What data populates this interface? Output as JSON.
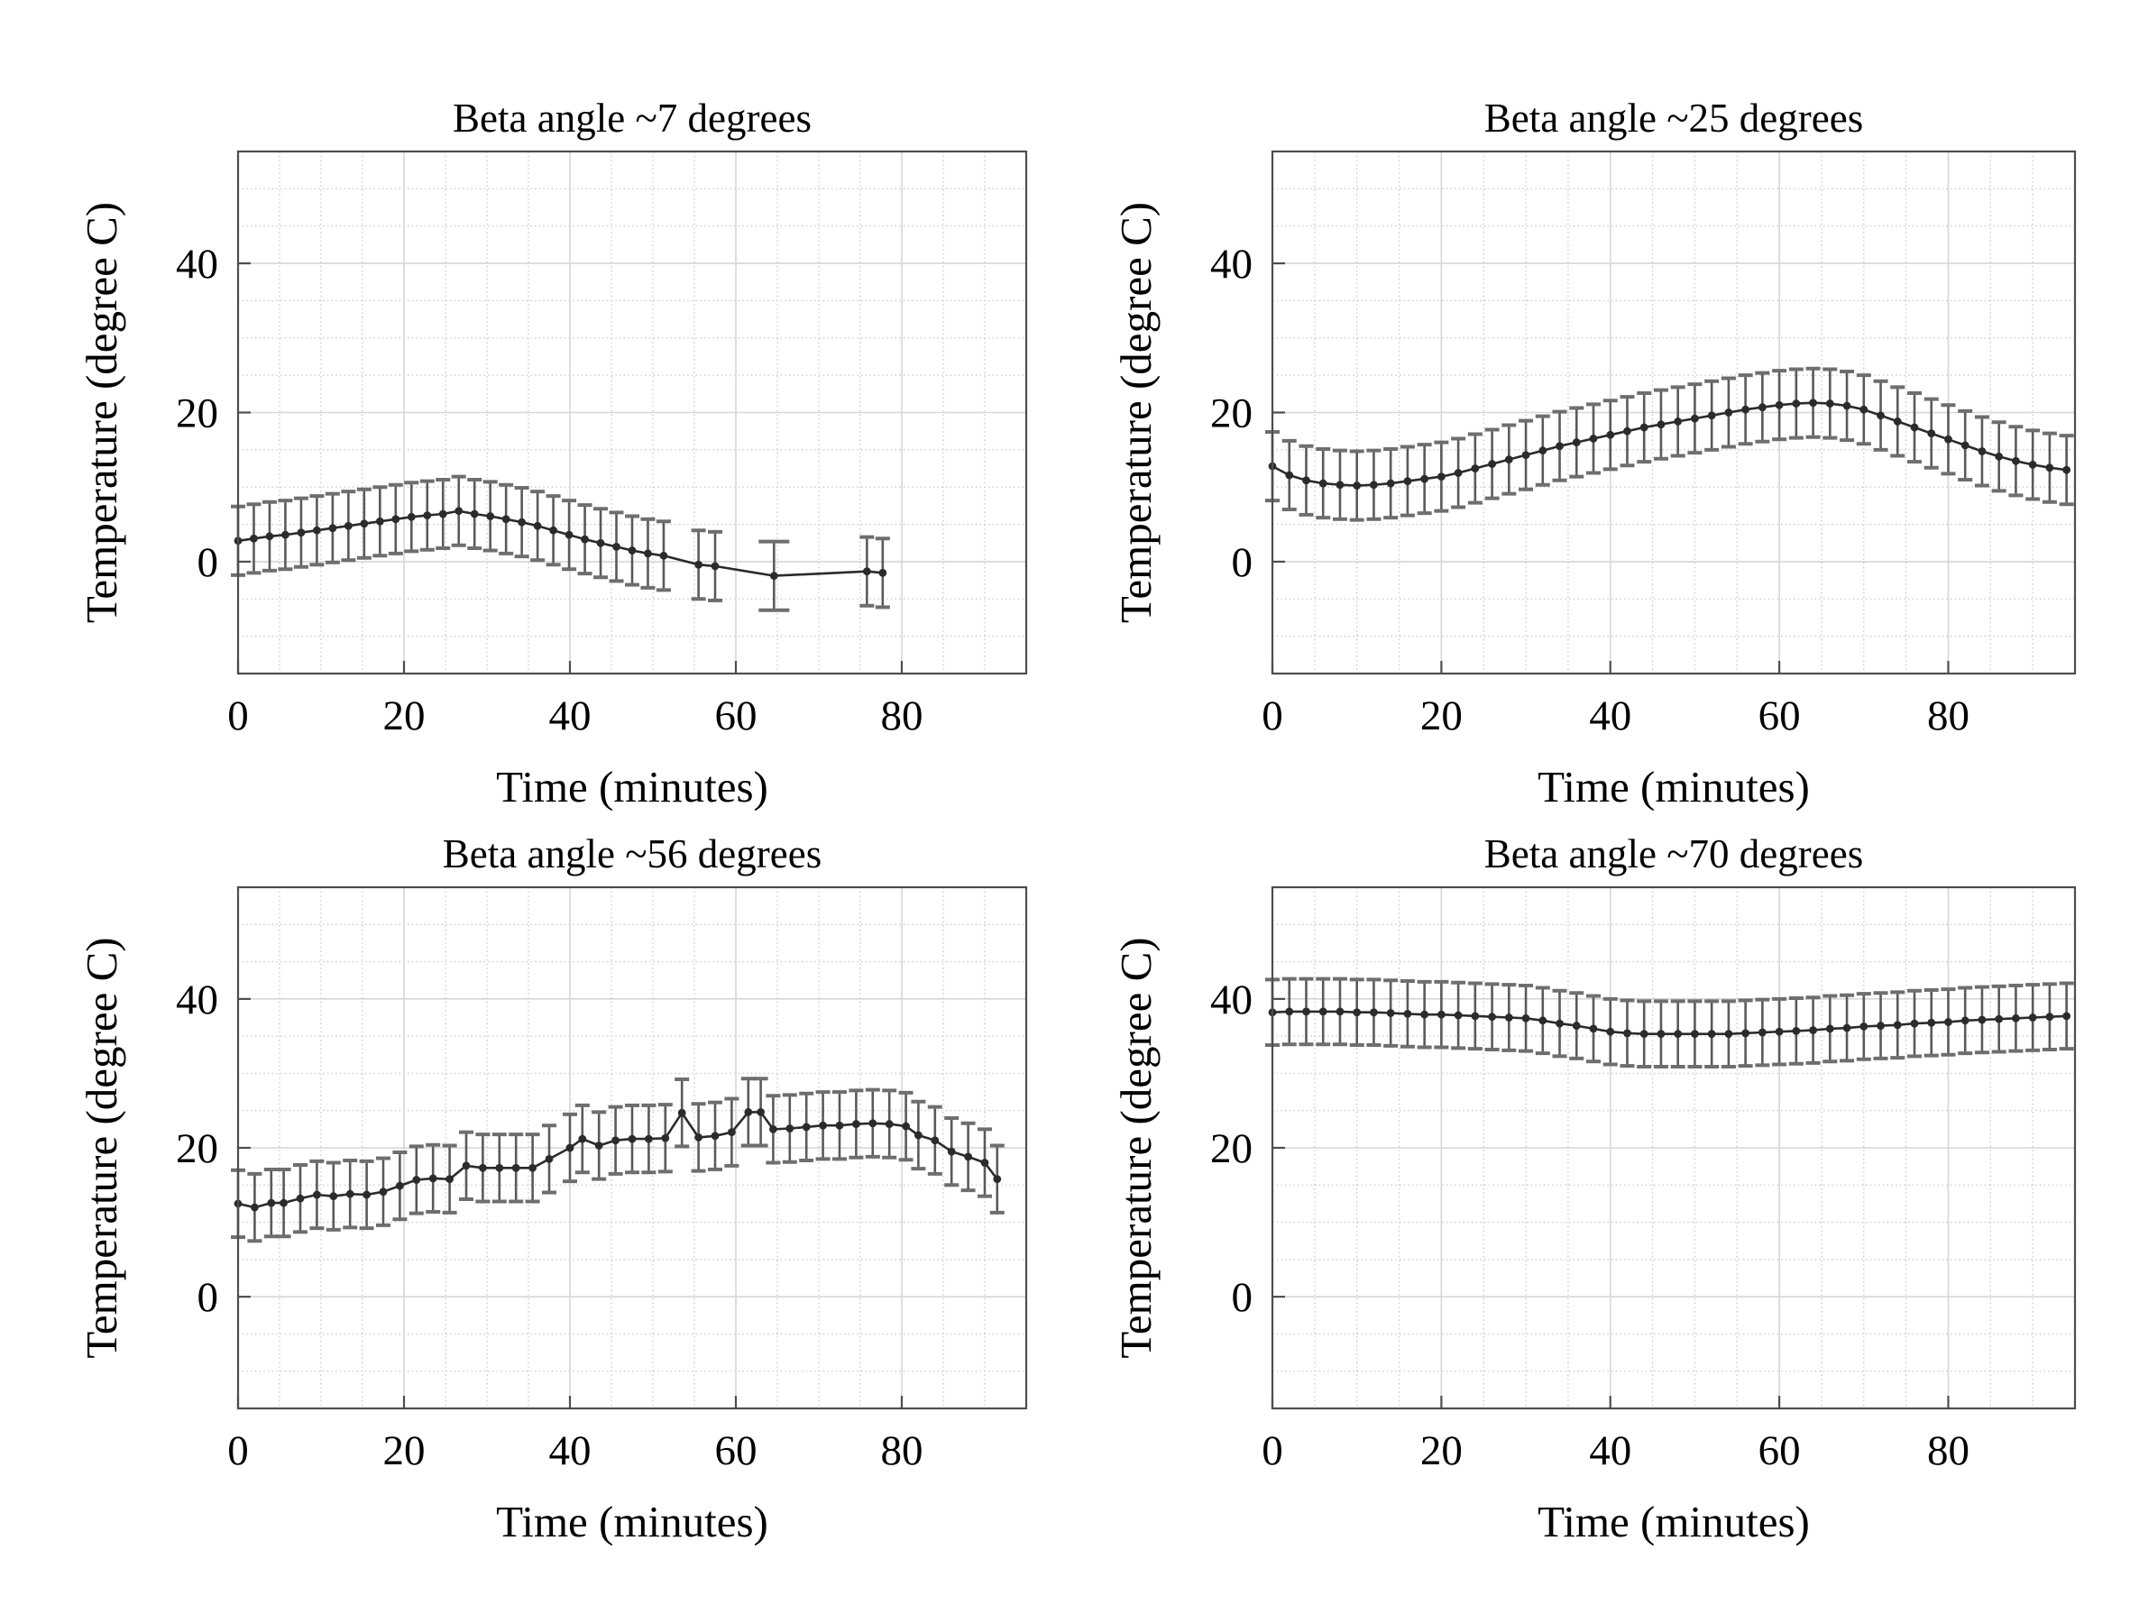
{
  "figure": {
    "background_color": "#ffffff",
    "text_color": "#000000",
    "axis_color": "#4d4d4d",
    "line_color": "#2b2b2b",
    "errorbar_color": "#5a5a5a",
    "errorbar_cap_color": "#6e6e6e",
    "major_grid_color": "#d6d6d6",
    "minor_grid_color": "#cccccc"
  },
  "chart_data": [
    {
      "type": "line",
      "panel": "top-left",
      "title": "Beta angle ~7 degrees",
      "xlabel": "Time (minutes)",
      "ylabel": "Temperature (degree C)",
      "xlim": [
        0,
        95
      ],
      "ylim": [
        -15,
        55
      ],
      "xticks": [
        0,
        20,
        40,
        60,
        80
      ],
      "yticks": [
        0,
        20,
        40
      ],
      "grid": "major+minor",
      "legend": "none",
      "marker": "point",
      "yerr": 4.6,
      "x": [
        0,
        1.9,
        3.8,
        5.7,
        7.6,
        9.5,
        11.4,
        13.3,
        15.2,
        17.1,
        19,
        20.9,
        22.8,
        24.7,
        26.6,
        28.5,
        30.4,
        32.3,
        34.2,
        36.1,
        38,
        39.9,
        41.8,
        43.7,
        45.6,
        47.5,
        49.4,
        51.3,
        55.5,
        57.5,
        64.6,
        75.8,
        77.7
      ],
      "y": [
        2.8,
        3.1,
        3.4,
        3.6,
        3.9,
        4.2,
        4.5,
        4.8,
        5.1,
        5.4,
        5.7,
        6.0,
        6.2,
        6.4,
        6.8,
        6.4,
        6.1,
        5.7,
        5.3,
        4.8,
        4.2,
        3.6,
        3.0,
        2.5,
        2.0,
        1.5,
        1.1,
        0.8,
        -0.4,
        -0.6,
        -1.9,
        -1.3,
        -1.5
      ]
    },
    {
      "type": "line",
      "panel": "top-right",
      "title": "Beta angle ~25 degrees",
      "xlabel": "Time (minutes)",
      "ylabel": "Temperature (degree C)",
      "xlim": [
        0,
        95
      ],
      "ylim": [
        -15,
        55
      ],
      "xticks": [
        0,
        20,
        40,
        60,
        80
      ],
      "yticks": [
        0,
        20,
        40
      ],
      "grid": "major+minor",
      "legend": "none",
      "marker": "point",
      "yerr": 4.6,
      "x": [
        0,
        2,
        4,
        6,
        8,
        10,
        12,
        14,
        16,
        18,
        20,
        22,
        24,
        26,
        28,
        30,
        32,
        34,
        36,
        38,
        40,
        42,
        44,
        46,
        48,
        50,
        52,
        54,
        56,
        58,
        60,
        62,
        64,
        66,
        68,
        70,
        72,
        74,
        76,
        78,
        80,
        82,
        84,
        86,
        88,
        90,
        92,
        94
      ],
      "y": [
        12.8,
        11.6,
        10.9,
        10.5,
        10.3,
        10.2,
        10.3,
        10.5,
        10.8,
        11.1,
        11.4,
        11.9,
        12.5,
        13.1,
        13.7,
        14.3,
        14.9,
        15.5,
        16.0,
        16.5,
        17.0,
        17.5,
        18.0,
        18.4,
        18.8,
        19.2,
        19.6,
        20.0,
        20.4,
        20.7,
        21.0,
        21.2,
        21.3,
        21.2,
        20.9,
        20.4,
        19.6,
        18.8,
        18.0,
        17.2,
        16.4,
        15.6,
        14.8,
        14.1,
        13.5,
        13.0,
        12.6,
        12.3
      ]
    },
    {
      "type": "line",
      "panel": "bottom-left",
      "title": "Beta angle ~56 degrees",
      "xlabel": "Time (minutes)",
      "ylabel": "Temperature (degree C)",
      "xlim": [
        0,
        95
      ],
      "ylim": [
        -15,
        55
      ],
      "xticks": [
        0,
        20,
        40,
        60,
        80
      ],
      "yticks": [
        0,
        20,
        40
      ],
      "grid": "major+minor",
      "legend": "none",
      "marker": "point",
      "yerr": 4.5,
      "x": [
        0,
        2,
        4,
        5.5,
        7.5,
        9.5,
        11.5,
        13.5,
        15.5,
        17.5,
        19.5,
        21.5,
        23.5,
        25.5,
        27.5,
        29.5,
        31.5,
        33.5,
        35.5,
        37.5,
        40,
        41.5,
        43.5,
        45.5,
        47.5,
        49.5,
        51.5,
        53.5,
        55.5,
        57.5,
        59.5,
        61.5,
        63,
        64.5,
        66.5,
        68.5,
        70.5,
        72.5,
        74.5,
        76.5,
        78.5,
        80.5,
        82,
        84,
        86,
        88,
        90,
        91.5
      ],
      "y": [
        12.5,
        12.0,
        12.6,
        12.6,
        13.2,
        13.7,
        13.5,
        13.8,
        13.7,
        14.1,
        14.9,
        15.7,
        15.9,
        15.8,
        17.6,
        17.3,
        17.3,
        17.3,
        17.3,
        18.5,
        20.0,
        21.2,
        20.3,
        21.0,
        21.2,
        21.2,
        21.3,
        24.7,
        21.4,
        21.6,
        22.1,
        24.8,
        24.8,
        22.5,
        22.6,
        22.8,
        23.0,
        23.0,
        23.2,
        23.3,
        23.2,
        22.9,
        21.7,
        21.0,
        19.5,
        18.8,
        18.0,
        15.8
      ]
    },
    {
      "type": "line",
      "panel": "bottom-right",
      "title": "Beta angle ~70 degrees",
      "xlabel": "Time (minutes)",
      "ylabel": "Temperature (degree C)",
      "xlim": [
        0,
        95
      ],
      "ylim": [
        -15,
        55
      ],
      "xticks": [
        0,
        20,
        40,
        60,
        80
      ],
      "yticks": [
        0,
        20,
        40
      ],
      "grid": "major+minor",
      "legend": "none",
      "marker": "point",
      "yerr": 4.4,
      "x": [
        0,
        2,
        4,
        6,
        8,
        10,
        12,
        14,
        16,
        18,
        20,
        22,
        24,
        26,
        28,
        30,
        32,
        34,
        36,
        38,
        40,
        42,
        44,
        46,
        48,
        50,
        52,
        54,
        56,
        58,
        60,
        62,
        64,
        66,
        68,
        70,
        72,
        74,
        76,
        78,
        80,
        82,
        84,
        86,
        88,
        90,
        92,
        94
      ],
      "y": [
        38.2,
        38.3,
        38.3,
        38.3,
        38.3,
        38.2,
        38.2,
        38.1,
        38.0,
        37.9,
        37.9,
        37.8,
        37.7,
        37.6,
        37.5,
        37.4,
        37.1,
        36.7,
        36.4,
        36.0,
        35.6,
        35.4,
        35.3,
        35.3,
        35.3,
        35.3,
        35.3,
        35.3,
        35.4,
        35.5,
        35.6,
        35.7,
        35.8,
        36.0,
        36.1,
        36.3,
        36.4,
        36.5,
        36.7,
        36.8,
        36.9,
        37.1,
        37.2,
        37.3,
        37.4,
        37.5,
        37.6,
        37.7
      ]
    }
  ]
}
